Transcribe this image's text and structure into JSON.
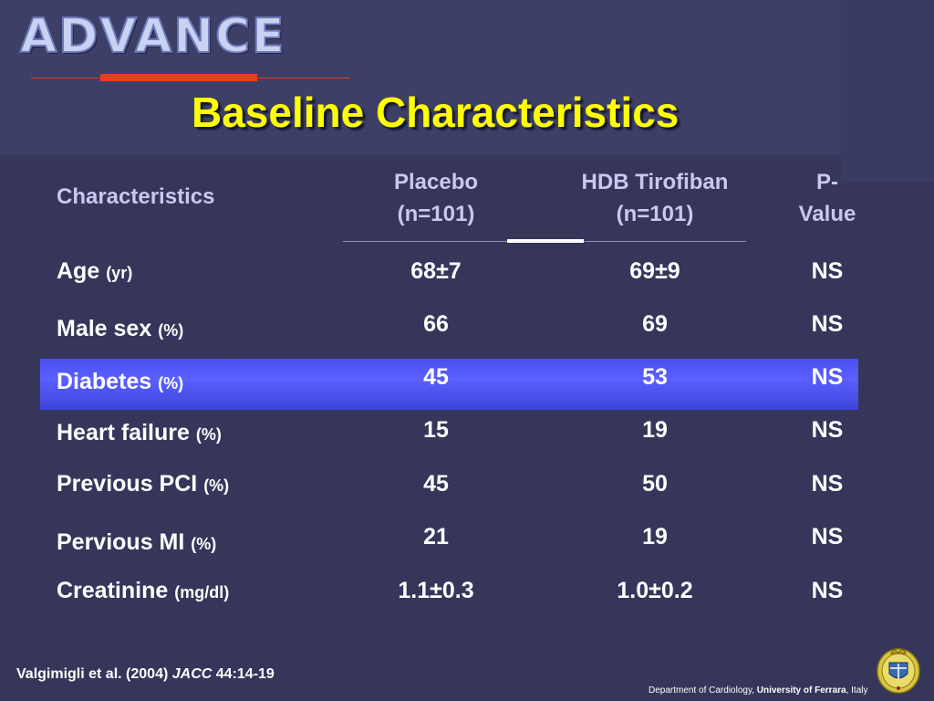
{
  "header": {
    "logo_text": "ADVANCE",
    "title": "Baseline Characteristics"
  },
  "table": {
    "columns": [
      {
        "line1": "Characteristics",
        "line2": ""
      },
      {
        "line1": "Placebo",
        "line2": "(n=101)"
      },
      {
        "line1": "HDB Tirofiban",
        "line2": "(n=101)"
      },
      {
        "line1": "P-",
        "line2": "Value"
      }
    ],
    "rows": [
      {
        "label": "Age",
        "unit": "(yr)",
        "placebo": "68±7",
        "tirofiban": "69±9",
        "p": "NS"
      },
      {
        "label": "Male sex",
        "unit": "(%)",
        "placebo": "66",
        "tirofiban": "69",
        "p": "NS"
      },
      {
        "label": "Diabetes",
        "unit": "(%)",
        "placebo": "45",
        "tirofiban": "53",
        "p": "NS",
        "highlighted": true
      },
      {
        "label": "Heart failure",
        "unit": "(%)",
        "placebo": "15",
        "tirofiban": "19",
        "p": "NS"
      },
      {
        "label": "Previous PCI",
        "unit": "(%)",
        "placebo": "45",
        "tirofiban": "50",
        "p": "NS"
      },
      {
        "label": "Pervious MI",
        "unit": "(%)",
        "placebo": "21",
        "tirofiban": "19",
        "p": "NS"
      },
      {
        "label": "Creatinine",
        "unit": "(mg/dl)",
        "placebo": "1.1±0.3",
        "tirofiban": "1.0±0.2",
        "p": "NS"
      }
    ]
  },
  "footer": {
    "citation_authors": "Valgimigli et al. (2004)",
    "citation_journal": "JACC",
    "citation_ref": "44:14-19",
    "dept_prefix": "Department of Cardiology,",
    "dept_university": "University of Ferrara",
    "dept_suffix": ", Italy"
  },
  "colors": {
    "background": "#35365a",
    "title": "#ffff00",
    "header_text": "#c8c8f0",
    "highlight_row": "#5158f5",
    "accent_bar": "#e8401c"
  }
}
